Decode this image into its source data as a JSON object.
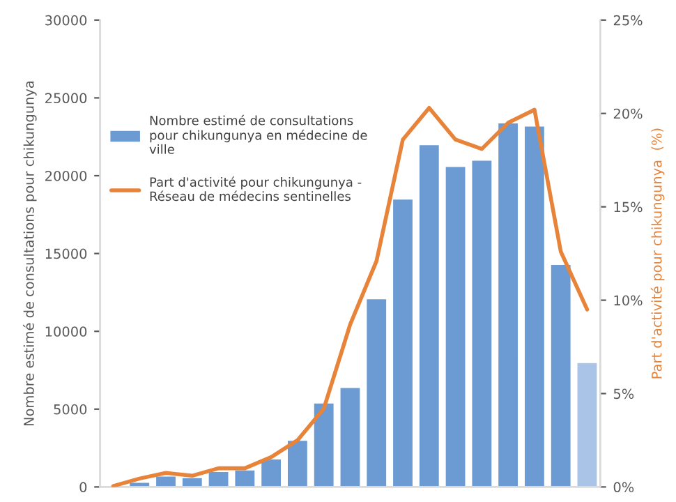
{
  "chart_data": {
    "type": "bar",
    "ylabel": "Nombre estimé de consultations pour chikungunya",
    "y2label": "Part d'activité pour chikungunya  (%)",
    "categories": [
      null,
      null,
      null,
      null,
      null,
      null,
      null,
      null,
      null,
      null,
      null,
      null,
      null,
      null,
      null,
      null,
      null,
      null,
      null
    ],
    "series": [
      {
        "name": "Nombre estimé de consultations pour chikungunya en médecine de ville",
        "color": "#6b9bd2",
        "colors": [
          "#6b9bd2",
          "#6b9bd2",
          "#6b9bd2",
          "#6b9bd2",
          "#6b9bd2",
          "#6b9bd2",
          "#6b9bd2",
          "#6b9bd2",
          "#6b9bd2",
          "#6b9bd2",
          "#6b9bd2",
          "#6b9bd2",
          "#6b9bd2",
          "#6b9bd2",
          "#6b9bd2",
          "#6b9bd2",
          "#6b9bd2",
          "#6b9bd2",
          "#a9c4e6"
        ],
        "values": [
          null,
          300,
          700,
          600,
          1000,
          1100,
          1800,
          3000,
          5400,
          6400,
          12100,
          18500,
          22000,
          20600,
          21000,
          23400,
          23200,
          14300,
          8000
        ]
      },
      {
        "name": "Part d'activité pour chikungunya - Réseau de médecins sentinelles",
        "type": "line",
        "axis": "y2",
        "color": "#e8833a",
        "values": [
          0.05,
          0.45,
          0.75,
          0.6,
          1.0,
          1.0,
          1.6,
          2.5,
          4.2,
          8.7,
          12.1,
          18.6,
          20.3,
          18.6,
          18.1,
          19.5,
          20.2,
          12.6,
          9.5
        ]
      }
    ],
    "ylim": [
      0,
      30000
    ],
    "yticks": [
      0,
      5000,
      10000,
      15000,
      20000,
      25000,
      30000
    ],
    "y2lim": [
      0,
      25
    ],
    "y2ticks": [
      {
        "value": 0,
        "label": "0%"
      },
      {
        "value": 5,
        "label": "5%"
      },
      {
        "value": 10,
        "label": "10%"
      },
      {
        "value": 15,
        "label": "15%"
      },
      {
        "value": 20,
        "label": "20%"
      },
      {
        "value": 25,
        "label": "25%"
      }
    ],
    "legend": "top left",
    "grid": false
  }
}
